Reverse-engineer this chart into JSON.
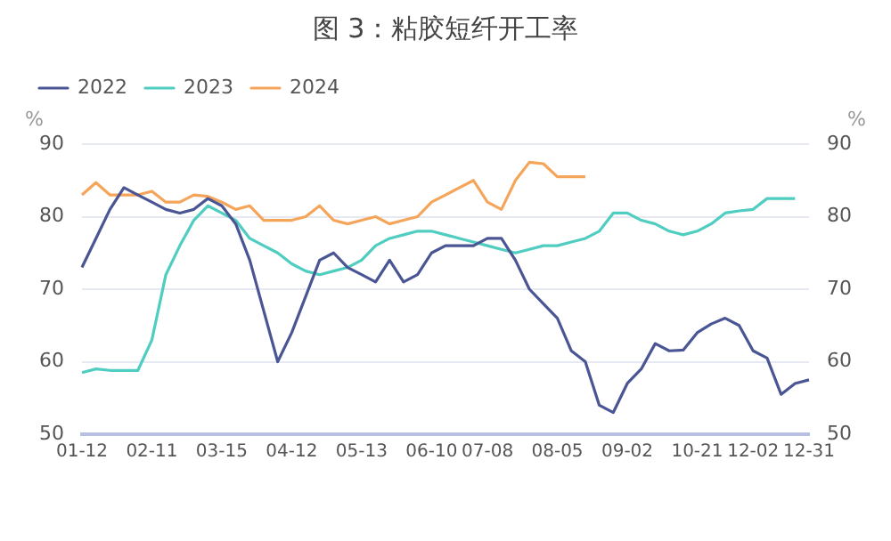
{
  "chart_data": {
    "type": "line",
    "title": "图 3：粘胶短纤开工率",
    "ylabel": "%",
    "y2label": "%",
    "categories": [
      "01-12",
      null,
      null,
      null,
      null,
      "02-11",
      null,
      null,
      null,
      null,
      "03-15",
      null,
      null,
      null,
      null,
      "04-12",
      null,
      null,
      null,
      null,
      "05-13",
      null,
      null,
      null,
      null,
      "06-10",
      null,
      null,
      null,
      "07-08",
      null,
      null,
      null,
      null,
      "08-05",
      null,
      null,
      null,
      null,
      "09-02",
      null,
      null,
      null,
      null,
      "10-21",
      null,
      null,
      null,
      "12-02",
      null,
      null,
      null,
      "12-31"
    ],
    "series": [
      {
        "name": "2022",
        "color": "#4a5594",
        "values": [
          73,
          77,
          81,
          84,
          83,
          82,
          81,
          80.5,
          81,
          82.5,
          81.5,
          79,
          74,
          67,
          60,
          64,
          69,
          74,
          75,
          73,
          72,
          71,
          74,
          71,
          72,
          75,
          76,
          76,
          76,
          77,
          77,
          74,
          70,
          68,
          66,
          61.5,
          60,
          54,
          53,
          57,
          59,
          62.5,
          61.5,
          61.6,
          64,
          65.2,
          66,
          65,
          61.5,
          60.5,
          55.5,
          57,
          57.5
        ]
      },
      {
        "name": "2023",
        "color": "#4ecdc0",
        "values": [
          58.5,
          59,
          58.8,
          58.8,
          58.8,
          63,
          72,
          76,
          79.5,
          81.5,
          80.5,
          79.5,
          77,
          76,
          75,
          73.5,
          72.5,
          72,
          72.5,
          73,
          74,
          76,
          77,
          77.5,
          78,
          78,
          77.5,
          77,
          76.5,
          76,
          75.5,
          75,
          75.5,
          76,
          76,
          76.5,
          77,
          78,
          80.5,
          80.5,
          79.5,
          79,
          78,
          77.5,
          78,
          79,
          80.5,
          80.8,
          81,
          82.5,
          82.5,
          82.5,
          null
        ]
      },
      {
        "name": "2024",
        "color": "#f5a55a",
        "values": [
          83,
          84.7,
          83,
          83,
          83,
          83.5,
          82,
          82,
          83,
          82.8,
          82,
          81,
          81.5,
          79.5,
          79.5,
          79.5,
          80,
          81.5,
          79.5,
          79,
          79.5,
          80,
          79,
          79.5,
          80,
          82,
          83,
          84,
          85,
          82,
          81,
          85,
          87.5,
          87.3,
          85.5,
          85.5,
          85.5,
          null,
          null,
          null,
          null,
          null,
          null,
          null,
          null,
          null,
          null,
          null,
          null,
          null,
          null,
          null,
          null
        ]
      }
    ],
    "ylim": [
      50,
      90
    ],
    "yticks": [
      50,
      60,
      70,
      80,
      90
    ],
    "y2lim": [
      50,
      90
    ],
    "y2ticks": [
      50,
      60,
      70,
      80,
      90
    ],
    "grid": "y",
    "legend": "top left"
  }
}
